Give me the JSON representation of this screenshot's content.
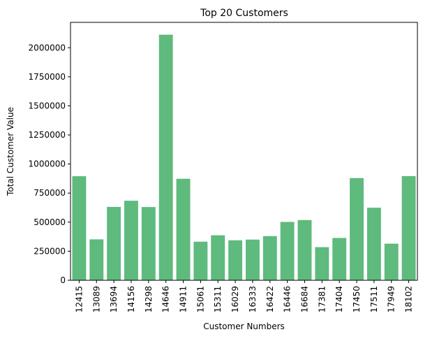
{
  "chart_data": {
    "type": "bar",
    "title": "Top 20 Customers",
    "xlabel": "Customer Numbers",
    "ylabel": "Total Customer Value",
    "categories": [
      "12415",
      "13089",
      "13694",
      "14156",
      "14298",
      "14646",
      "14911",
      "15061",
      "15311",
      "16029",
      "16333",
      "16422",
      "16446",
      "16684",
      "17381",
      "17404",
      "17450",
      "17511",
      "17949",
      "18102"
    ],
    "values": [
      895000,
      352000,
      631000,
      684000,
      630000,
      2112000,
      873000,
      332000,
      387000,
      344000,
      350000,
      380000,
      502000,
      518000,
      285000,
      364000,
      879000,
      624000,
      315000,
      896000
    ],
    "ylim": [
      0,
      2218000
    ],
    "yticks": [
      0,
      250000,
      500000,
      750000,
      1000000,
      1250000,
      1500000,
      1750000,
      2000000
    ],
    "bar_color": "#5eba7d",
    "grid": false,
    "legend": "none"
  }
}
